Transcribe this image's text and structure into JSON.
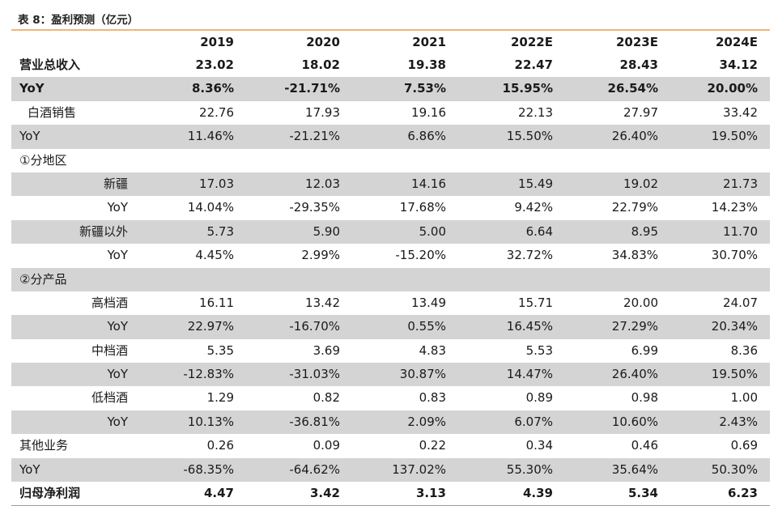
{
  "title": "表 8：盈利预测（亿元）",
  "columns": [
    "2019",
    "2020",
    "2021",
    "2022E",
    "2023E",
    "2024E"
  ],
  "rows": [
    {
      "label": "营业总收入",
      "values": [
        "23.02",
        "18.02",
        "19.38",
        "22.47",
        "28.43",
        "34.12"
      ]
    },
    {
      "label": "YoY",
      "values": [
        "8.36%",
        "-21.71%",
        "7.53%",
        "15.95%",
        "26.54%",
        "20.00%"
      ]
    },
    {
      "label": "白酒销售",
      "values": [
        "22.76",
        "17.93",
        "19.16",
        "22.13",
        "27.97",
        "33.42"
      ]
    },
    {
      "label": "YoY",
      "values": [
        "11.46%",
        "-21.21%",
        "6.86%",
        "15.50%",
        "26.40%",
        "19.50%"
      ]
    },
    {
      "label": "①分地区",
      "values": [
        "",
        "",
        "",
        "",
        "",
        ""
      ]
    },
    {
      "label": "新疆",
      "values": [
        "17.03",
        "12.03",
        "14.16",
        "15.49",
        "19.02",
        "21.73"
      ]
    },
    {
      "label": "YoY",
      "values": [
        "14.04%",
        "-29.35%",
        "17.68%",
        "9.42%",
        "22.79%",
        "14.23%"
      ]
    },
    {
      "label": "新疆以外",
      "values": [
        "5.73",
        "5.90",
        "5.00",
        "6.64",
        "8.95",
        "11.70"
      ]
    },
    {
      "label": "YoY",
      "values": [
        "4.45%",
        "2.99%",
        "-15.20%",
        "32.72%",
        "34.83%",
        "30.70%"
      ]
    },
    {
      "label": "②分产品",
      "values": [
        "",
        "",
        "",
        "",
        "",
        ""
      ]
    },
    {
      "label": "高档酒",
      "values": [
        "16.11",
        "13.42",
        "13.49",
        "15.71",
        "20.00",
        "24.07"
      ]
    },
    {
      "label": "YoY",
      "values": [
        "22.97%",
        "-16.70%",
        "0.55%",
        "16.45%",
        "27.29%",
        "20.34%"
      ]
    },
    {
      "label": "中档酒",
      "values": [
        "5.35",
        "3.69",
        "4.83",
        "5.53",
        "6.99",
        "8.36"
      ]
    },
    {
      "label": "YoY",
      "values": [
        "-12.83%",
        "-31.03%",
        "30.87%",
        "14.47%",
        "26.40%",
        "19.50%"
      ]
    },
    {
      "label": "低档酒",
      "values": [
        "1.29",
        "0.82",
        "0.83",
        "0.89",
        "0.98",
        "1.00"
      ]
    },
    {
      "label": "YoY",
      "values": [
        "10.13%",
        "-36.81%",
        "2.09%",
        "6.07%",
        "10.60%",
        "2.43%"
      ]
    },
    {
      "label": "其他业务",
      "values": [
        "0.26",
        "0.09",
        "0.22",
        "0.34",
        "0.46",
        "0.69"
      ]
    },
    {
      "label": "YoY",
      "values": [
        "-68.35%",
        "-64.62%",
        "137.02%",
        "55.30%",
        "35.64%",
        "50.30%"
      ]
    },
    {
      "label": "归母净利润",
      "values": [
        "4.47",
        "3.42",
        "3.13",
        "4.39",
        "5.34",
        "6.23"
      ]
    }
  ]
}
